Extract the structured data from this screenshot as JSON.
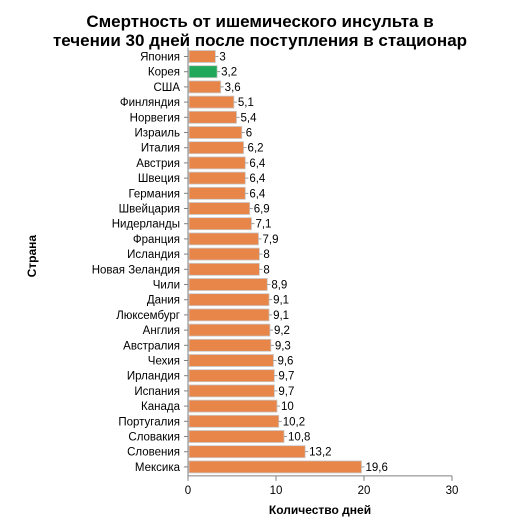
{
  "chart_data": {
    "type": "bar",
    "orientation": "horizontal",
    "title": "Смертность от ишемического инсульта в течении 30 дней после поступления в стационар",
    "title_lines": [
      "Смертность от ишемического инсульта в",
      "течении 30 дней после поступления в стационар"
    ],
    "xlabel": "Количество дней",
    "ylabel": "Страна",
    "xlim": [
      0,
      30
    ],
    "xticks": [
      "0",
      "10",
      "20",
      "30"
    ],
    "grid": false,
    "legend": "none",
    "categories": [
      "Япония",
      "Корея",
      "США",
      "Финляндия",
      "Норвегия",
      "Израиль",
      "Италия",
      "Австрия",
      "Швеция",
      "Германия",
      "Швейцария",
      "Нидерланды",
      "Франция",
      "Исландия",
      "Новая Зеландия",
      "Чили",
      "Дания",
      "Люксембург",
      "Англия",
      "Австралия",
      "Чехия",
      "Ирландия",
      "Испания",
      "Канада",
      "Португалия",
      "Словакия",
      "Словения",
      "Мексика"
    ],
    "values": [
      3,
      3.2,
      3.6,
      5.1,
      5.4,
      6,
      6.2,
      6.4,
      6.4,
      6.4,
      6.9,
      7.1,
      7.9,
      8,
      8,
      8.9,
      9.1,
      9.1,
      9.2,
      9.3,
      9.6,
      9.7,
      9.7,
      10,
      10.2,
      10.8,
      13.2,
      19.6
    ],
    "value_labels": [
      "3",
      "3,2",
      "3,6",
      "5,1",
      "5,4",
      "6",
      "6,2",
      "6,4",
      "6,4",
      "6,4",
      "6,9",
      "7,1",
      "7,9",
      "8",
      "8",
      "8,9",
      "9,1",
      "9,1",
      "9,2",
      "9,3",
      "9,6",
      "9,7",
      "9,7",
      "10",
      "10,2",
      "10,8",
      "13,2",
      "19,6"
    ],
    "highlight_index": 1,
    "colors": {
      "bar": "#e8864a",
      "highlight": "#22a85a",
      "bar_border": "#c9c9c9"
    }
  }
}
